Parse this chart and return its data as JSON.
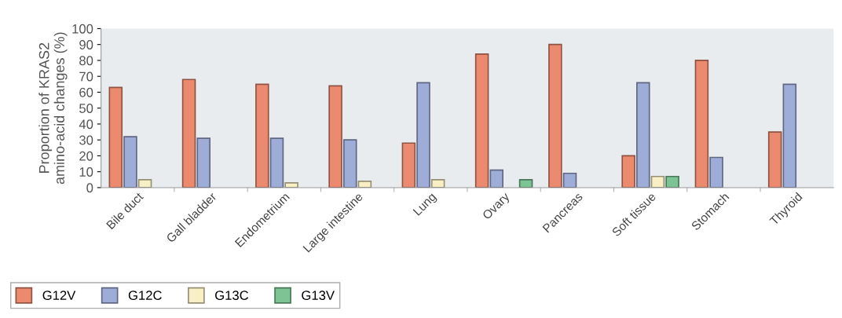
{
  "chart_data": {
    "type": "bar",
    "ylabel": "Proportion of KRAS2\namino-acid changes (%)",
    "categories": [
      "Bile duct",
      "Gall bladder",
      "Endometrium",
      "Large intestine",
      "Lung",
      "Ovary",
      "Pancreas",
      "Soft tissue",
      "Stomach",
      "Thyroid"
    ],
    "series": [
      {
        "name": "G12V",
        "color": "#ec8a70",
        "values": [
          63,
          68,
          65,
          64,
          28,
          84,
          90,
          20,
          80,
          35
        ]
      },
      {
        "name": "G12C",
        "color": "#9eacd8",
        "values": [
          32,
          31,
          31,
          30,
          66,
          11,
          9,
          66,
          19,
          65
        ]
      },
      {
        "name": "G13C",
        "color": "#f8f0c4",
        "values": [
          5,
          null,
          3,
          4,
          5,
          null,
          null,
          7,
          null,
          null
        ]
      },
      {
        "name": "G13V",
        "color": "#7cc494",
        "values": [
          null,
          null,
          null,
          null,
          null,
          5,
          null,
          7,
          null,
          null
        ]
      }
    ],
    "ylim": [
      0,
      100
    ],
    "yticks": [
      0,
      10,
      20,
      30,
      40,
      50,
      60,
      70,
      80,
      90,
      100
    ],
    "grid": false,
    "legend": "bottom left"
  }
}
